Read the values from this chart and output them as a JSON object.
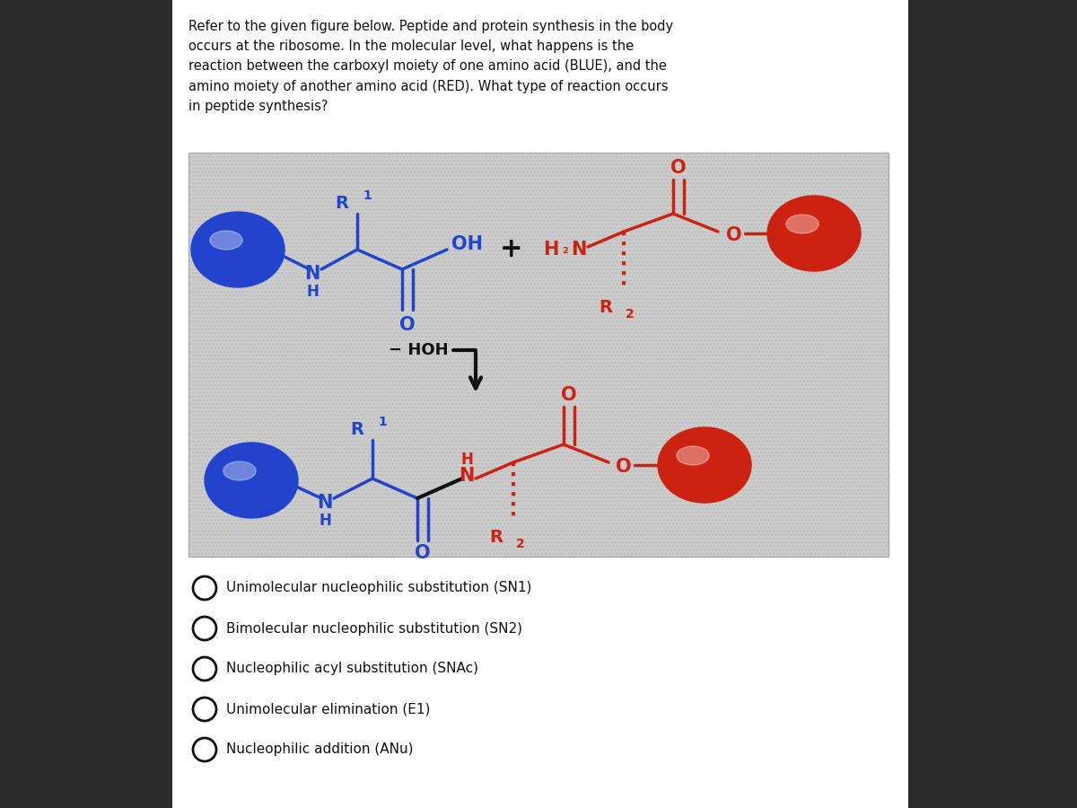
{
  "bg_color": "#2a2a2a",
  "panel_bg": "#ffffff",
  "blue": "#2244cc",
  "red": "#cc2211",
  "black": "#111111",
  "diagram_bg": "#cccccc",
  "question": "Refer to the given figure below. Peptide and protein synthesis in the body\noccurs at the ribosome. In the molecular level, what happens is the\nreaction between the carboxyl moiety of one amino acid (BLUE), and the\namino moiety of another amino acid (RED). What type of reaction occurs\nin peptide synthesis?",
  "choices": [
    "Unimolecular nucleophilic substitution (SN1)",
    "Bimolecular nucleophilic substitution (SN2)",
    "Nucleophilic acyl substitution (SNAc)",
    "Unimolecular elimination (E1)",
    "Nucleophilic addition (ANu)"
  ]
}
